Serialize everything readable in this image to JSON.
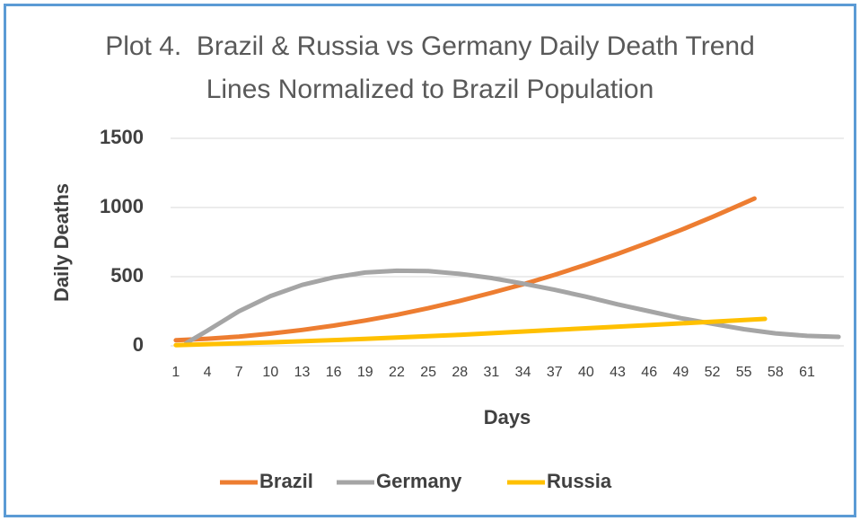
{
  "chart_data": {
    "type": "line",
    "title": "Plot 4.  Brazil & Russia vs Germany Daily Death Trend Lines Normalized to Brazil Population",
    "x_label": "Days",
    "y_label": "Daily Deaths",
    "xlim": [
      0.5,
      64.5
    ],
    "xticks": [
      1,
      4,
      7,
      10,
      13,
      16,
      19,
      22,
      25,
      28,
      31,
      34,
      37,
      40,
      43,
      46,
      49,
      52,
      55,
      58,
      61
    ],
    "ylim": [
      0,
      1500
    ],
    "yticks": [
      0,
      500,
      1000,
      1500
    ],
    "grid": true,
    "legend": "bottom",
    "series": [
      {
        "name": "Brazil",
        "color": "#ed7d31",
        "x": [
          1,
          4,
          7,
          10,
          13,
          16,
          19,
          22,
          25,
          28,
          31,
          34,
          37,
          40,
          43,
          46,
          49,
          52,
          55,
          56
        ],
        "values": [
          40,
          51,
          67,
          88,
          115,
          146,
          183,
          225,
          272,
          325,
          383,
          445,
          513,
          587,
          665,
          749,
          837,
          931,
          1031,
          1065
        ]
      },
      {
        "name": "Germany",
        "color": "#a5a5a5",
        "x": [
          2,
          4,
          7,
          10,
          13,
          16,
          19,
          22,
          25,
          28,
          31,
          34,
          37,
          40,
          43,
          46,
          49,
          52,
          55,
          58,
          61,
          64
        ],
        "values": [
          20,
          110,
          250,
          360,
          440,
          495,
          530,
          543,
          540,
          520,
          490,
          450,
          405,
          355,
          300,
          250,
          200,
          160,
          120,
          90,
          72,
          65
        ]
      },
      {
        "name": "Russia",
        "color": "#ffc000",
        "x": [
          1,
          10,
          19,
          28,
          37,
          46,
          57
        ],
        "values": [
          5,
          25,
          50,
          80,
          115,
          150,
          195
        ]
      }
    ]
  }
}
